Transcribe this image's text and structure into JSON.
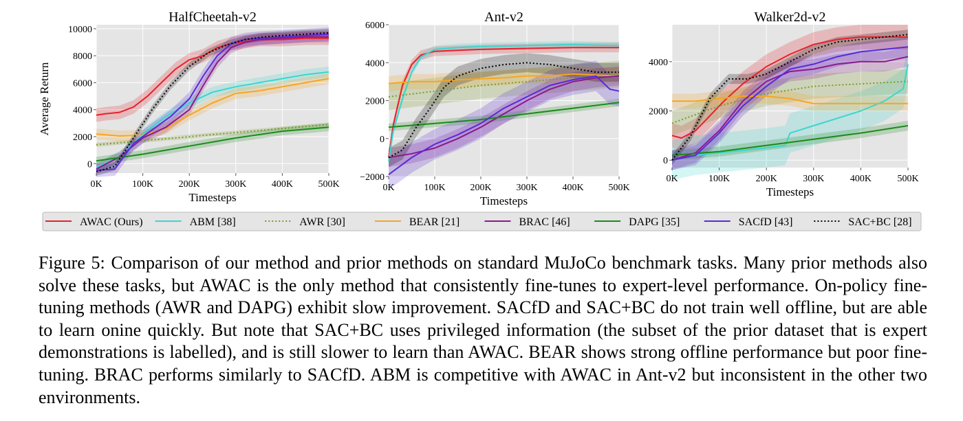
{
  "chart_data": [
    {
      "type": "line",
      "title": "HalfCheetah-v2",
      "xlabel": "Timesteps",
      "ylabel": "Average Return",
      "xlim": [
        0,
        500000
      ],
      "ylim": [
        -700,
        10300
      ],
      "xticks": [
        0,
        100000,
        200000,
        300000,
        400000,
        500000
      ],
      "xtick_labels": [
        "0K",
        "100K",
        "200K",
        "300K",
        "400K",
        "500K"
      ],
      "yticks": [
        0,
        2000,
        4000,
        6000,
        8000,
        10000
      ],
      "ytick_labels": [
        "0",
        "2000",
        "4000",
        "6000",
        "8000",
        "10000"
      ],
      "grid": true,
      "series": [
        {
          "name": "AWAC (Ours)",
          "x": [
            0,
            20000,
            50000,
            80000,
            110000,
            140000,
            170000,
            200000,
            230000,
            260000,
            290000,
            320000,
            350000,
            400000,
            450000,
            500000
          ],
          "values": [
            3600,
            3700,
            3800,
            4200,
            5000,
            6000,
            7000,
            7700,
            8000,
            8600,
            8900,
            9050,
            9200,
            9200,
            9300,
            9300
          ],
          "band": 500
        },
        {
          "name": "ABM [38]",
          "x": [
            0,
            50000,
            100000,
            150000,
            200000,
            250000,
            300000,
            350000,
            400000,
            450000,
            500000
          ],
          "values": [
            -300,
            500,
            2200,
            3500,
            4500,
            5300,
            5700,
            6000,
            6300,
            6600,
            6800
          ],
          "band": 400
        },
        {
          "name": "AWR [30]",
          "x": [
            0,
            100000,
            200000,
            300000,
            400000,
            500000
          ],
          "values": [
            1400,
            1700,
            2000,
            2300,
            2600,
            2900
          ],
          "band": 150
        },
        {
          "name": "BEAR [21]",
          "x": [
            0,
            50000,
            100000,
            150000,
            200000,
            250000,
            300000,
            350000,
            400000,
            450000,
            500000
          ],
          "values": [
            2200,
            2050,
            2100,
            2600,
            3600,
            4500,
            5200,
            5400,
            5700,
            6000,
            6300
          ],
          "band": 400
        },
        {
          "name": "BRAC [46]",
          "x": [
            0,
            50000,
            100000,
            150000,
            200000,
            230000,
            260000,
            290000,
            320000,
            350000,
            400000,
            450000,
            500000
          ],
          "values": [
            -400,
            500,
            1900,
            2700,
            4000,
            5800,
            7500,
            8600,
            9000,
            9200,
            9300,
            9400,
            9400
          ],
          "band": 400
        },
        {
          "name": "DAPG [35]",
          "x": [
            0,
            100000,
            200000,
            300000,
            400000,
            500000
          ],
          "values": [
            200,
            700,
            1300,
            1900,
            2400,
            2700
          ],
          "band": 300
        },
        {
          "name": "SACfD [43]",
          "x": [
            0,
            40000,
            80000,
            120000,
            160000,
            200000,
            230000,
            260000,
            290000,
            320000,
            350000,
            400000,
            450000,
            500000
          ],
          "values": [
            -500,
            -400,
            1500,
            2500,
            3500,
            4800,
            6500,
            8000,
            8900,
            9200,
            9300,
            9400,
            9500,
            9600
          ],
          "band": 500
        },
        {
          "name": "SAC+BC [28]",
          "x": [
            0,
            40000,
            80000,
            120000,
            160000,
            200000,
            240000,
            280000,
            320000,
            360000,
            400000,
            450000,
            500000
          ],
          "values": [
            -600,
            -200,
            1900,
            4000,
            5800,
            7200,
            8200,
            8800,
            9200,
            9400,
            9500,
            9600,
            9700
          ],
          "band": 300
        }
      ]
    },
    {
      "type": "line",
      "title": "Ant-v2",
      "xlabel": "Timesteps",
      "ylabel": "",
      "xlim": [
        0,
        500000
      ],
      "ylim": [
        -2000,
        6000
      ],
      "xticks": [
        0,
        100000,
        200000,
        300000,
        400000,
        500000
      ],
      "xtick_labels": [
        "0K",
        "100K",
        "200K",
        "300K",
        "400K",
        "500K"
      ],
      "yticks": [
        -2000,
        0,
        2000,
        4000,
        6000
      ],
      "ytick_labels": [
        "−2000",
        "0",
        "2000",
        "4000",
        "6000"
      ],
      "grid": true,
      "series": [
        {
          "name": "AWAC (Ours)",
          "x": [
            0,
            10000,
            30000,
            50000,
            70000,
            100000,
            150000,
            200000,
            300000,
            400000,
            500000
          ],
          "values": [
            -1000,
            700,
            2800,
            3900,
            4400,
            4600,
            4650,
            4700,
            4750,
            4800,
            4800
          ],
          "band": 250
        },
        {
          "name": "ABM [38]",
          "x": [
            0,
            10000,
            30000,
            50000,
            70000,
            100000,
            150000,
            200000,
            300000,
            400000,
            500000
          ],
          "values": [
            -1200,
            400,
            2100,
            3500,
            4300,
            4700,
            4800,
            4850,
            4900,
            4950,
            4900
          ],
          "band": 200
        },
        {
          "name": "AWR [30]",
          "x": [
            0,
            100000,
            200000,
            300000,
            400000,
            500000
          ],
          "values": [
            2200,
            2500,
            2800,
            3000,
            3200,
            3400
          ],
          "band": 700
        },
        {
          "name": "BEAR [21]",
          "x": [
            0,
            50000,
            100000,
            150000,
            200000,
            250000,
            300000,
            350000,
            400000,
            450000,
            500000
          ],
          "values": [
            2900,
            3000,
            3000,
            3100,
            3150,
            3200,
            3300,
            3300,
            3400,
            3350,
            3300
          ],
          "band": 400
        },
        {
          "name": "BRAC [46]",
          "x": [
            0,
            50000,
            100000,
            150000,
            200000,
            250000,
            300000,
            350000,
            400000,
            450000,
            500000
          ],
          "values": [
            -1000,
            -800,
            -500,
            0,
            600,
            1300,
            2000,
            2600,
            3000,
            3200,
            3300
          ],
          "band": 500
        },
        {
          "name": "DAPG [35]",
          "x": [
            0,
            100000,
            200000,
            300000,
            400000,
            500000
          ],
          "values": [
            600,
            800,
            1000,
            1300,
            1600,
            1900
          ],
          "band": 200
        },
        {
          "name": "SACfD [43]",
          "x": [
            0,
            50000,
            100000,
            150000,
            200000,
            250000,
            300000,
            350000,
            400000,
            450000,
            480000,
            500000
          ],
          "values": [
            -1900,
            -1000,
            -300,
            200,
            800,
            1600,
            2200,
            2800,
            3100,
            3300,
            2600,
            2500
          ],
          "band": 800
        },
        {
          "name": "SAC+BC [28]",
          "x": [
            0,
            30000,
            60000,
            90000,
            120000,
            150000,
            200000,
            250000,
            300000,
            350000,
            400000,
            450000,
            500000
          ],
          "values": [
            -1000,
            -600,
            600,
            1600,
            2700,
            3300,
            3700,
            3900,
            4000,
            3900,
            3700,
            3500,
            3500
          ],
          "band": 500
        }
      ]
    },
    {
      "type": "line",
      "title": "Walker2d-v2",
      "xlabel": "Timesteps",
      "ylabel": "",
      "xlim": [
        0,
        500000
      ],
      "ylim": [
        -300,
        5500
      ],
      "xticks": [
        0,
        100000,
        200000,
        300000,
        400000,
        500000
      ],
      "xtick_labels": [
        "0K",
        "100K",
        "200K",
        "300K",
        "400K",
        "500K"
      ],
      "yticks": [
        0,
        2000,
        4000
      ],
      "ytick_labels": [
        "0",
        "2000",
        "4000"
      ],
      "grid": true,
      "series": [
        {
          "name": "AWAC (Ours)",
          "x": [
            0,
            20000,
            50000,
            80000,
            110000,
            150000,
            200000,
            250000,
            300000,
            350000,
            400000,
            450000,
            500000
          ],
          "values": [
            1000,
            900,
            1200,
            1800,
            2400,
            3100,
            3800,
            4300,
            4700,
            4900,
            5000,
            5000,
            5000
          ],
          "band": 500
        },
        {
          "name": "ABM [38]",
          "x": [
            0,
            50000,
            100000,
            150000,
            200000,
            240000,
            250000,
            300000,
            350000,
            400000,
            450000,
            490000,
            500000
          ],
          "values": [
            0,
            200,
            300,
            400,
            500,
            600,
            1100,
            1400,
            1700,
            2000,
            2400,
            2900,
            3900
          ],
          "band": 800
        },
        {
          "name": "AWR [30]",
          "x": [
            0,
            100000,
            200000,
            300000,
            400000,
            500000
          ],
          "values": [
            1500,
            2200,
            2700,
            3000,
            3100,
            3200
          ],
          "band": 500
        },
        {
          "name": "BEAR [21]",
          "x": [
            0,
            50000,
            100000,
            150000,
            200000,
            250000,
            300000,
            350000,
            400000,
            450000,
            500000
          ],
          "values": [
            2400,
            2400,
            2500,
            2600,
            2600,
            2500,
            2300,
            2300,
            2300,
            2300,
            2300
          ],
          "band": 300
        },
        {
          "name": "BRAC [46]",
          "x": [
            0,
            50000,
            100000,
            150000,
            200000,
            250000,
            300000,
            350000,
            400000,
            450000,
            500000
          ],
          "values": [
            0,
            300,
            1200,
            2400,
            3200,
            3600,
            3700,
            3900,
            4000,
            4000,
            4200
          ],
          "band": 400
        },
        {
          "name": "DAPG [35]",
          "x": [
            0,
            100000,
            200000,
            300000,
            400000,
            500000
          ],
          "values": [
            200,
            350,
            600,
            850,
            1100,
            1400
          ],
          "band": 200
        },
        {
          "name": "SACfD [43]",
          "x": [
            0,
            50000,
            100000,
            150000,
            200000,
            250000,
            300000,
            350000,
            400000,
            450000,
            500000
          ],
          "values": [
            0,
            200,
            1100,
            2200,
            3000,
            3700,
            3900,
            4200,
            4400,
            4500,
            4600
          ],
          "band": 400
        },
        {
          "name": "SAC+BC [28]",
          "x": [
            0,
            40000,
            80000,
            120000,
            160000,
            200000,
            250000,
            300000,
            350000,
            400000,
            450000,
            500000
          ],
          "values": [
            0,
            1000,
            2500,
            3300,
            3300,
            3500,
            4000,
            4500,
            4800,
            4900,
            5000,
            5100
          ],
          "band": 200
        }
      ]
    }
  ],
  "legend": {
    "placement": "bottom",
    "items": [
      {
        "label": "AWAC (Ours)",
        "color": "#e8202a",
        "style": "solid"
      },
      {
        "label": "ABM [38]",
        "color": "#3ad6cf",
        "style": "solid"
      },
      {
        "label": "AWR [30]",
        "color": "#7a9a2a",
        "style": "dotted"
      },
      {
        "label": "BEAR [21]",
        "color": "#f5a623",
        "style": "solid"
      },
      {
        "label": "BRAC [46]",
        "color": "#8a1a8e",
        "style": "solid"
      },
      {
        "label": "DAPG [35]",
        "color": "#1a8a1a",
        "style": "solid"
      },
      {
        "label": "SACfD [43]",
        "color": "#5a2ad6",
        "style": "solid"
      },
      {
        "label": "SAC+BC [28]",
        "color": "#000000",
        "style": "dotted"
      }
    ]
  },
  "caption": {
    "label": "Figure 5:",
    "text": "Comparison of our method and prior methods on standard MuJoCo benchmark tasks. Many prior methods also solve these tasks, but AWAC is the only method that consistently fine-tunes to expert-level performance. On-policy fine-tuning methods (AWR and DAPG) exhibit slow improvement. SACfD and SAC+BC do not train well offline, but are able to learn onine quickly. But note that SAC+BC uses privileged information (the subset of the prior dataset that is expert demonstrations is labelled), and is still slower to learn than AWAC. BEAR shows strong offline performance but poor fine-tuning. BRAC performs similarly to SACfD. ABM is competitive with AWAC in Ant-v2 but inconsistent in the other two environments."
  }
}
